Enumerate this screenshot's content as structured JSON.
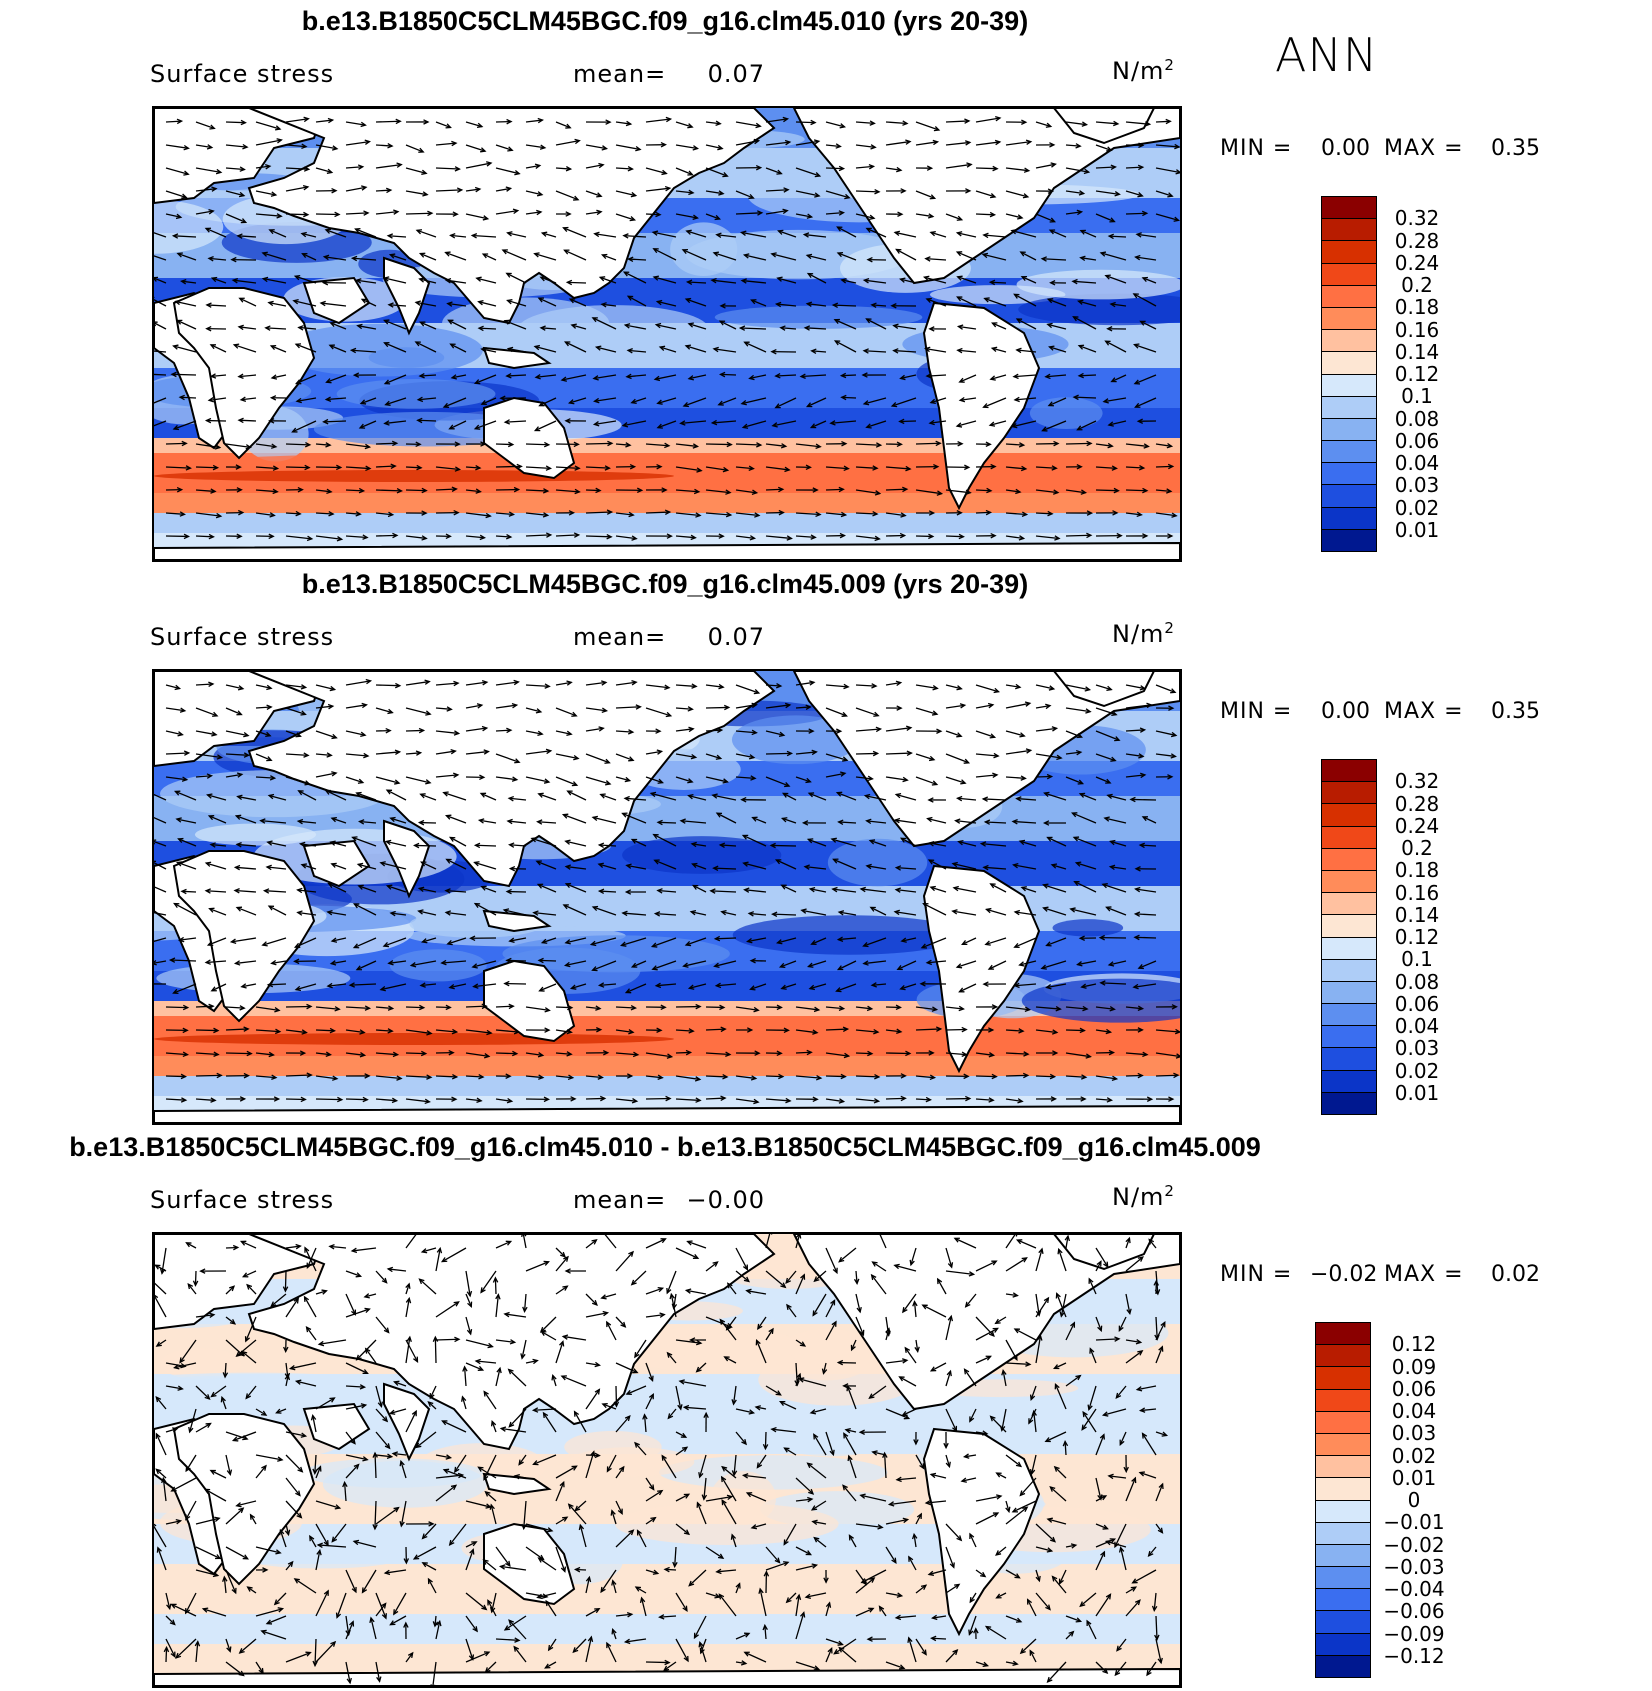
{
  "season": "ANN",
  "panels": [
    {
      "title": "b.e13.B1850C5CLM45BGC.f09_g16.clm45.010 (yrs 20-39)",
      "variable": "Surface stress",
      "mean_label": "mean=",
      "mean_value": "0.07",
      "units": "N/m",
      "units_sup": "2",
      "min_label": "MIN =",
      "min_value": "0.00",
      "max_label": "MAX =",
      "max_value": "0.35",
      "colorbar_labels": [
        "0.32",
        "0.28",
        "0.24",
        "0.2",
        "0.18",
        "0.16",
        "0.14",
        "0.12",
        "0.1",
        "0.08",
        "0.06",
        "0.04",
        "0.03",
        "0.02",
        "0.01"
      ]
    },
    {
      "title": "b.e13.B1850C5CLM45BGC.f09_g16.clm45.009 (yrs 20-39)",
      "variable": "Surface stress",
      "mean_label": "mean=",
      "mean_value": "0.07",
      "units": "N/m",
      "units_sup": "2",
      "min_label": "MIN =",
      "min_value": "0.00",
      "max_label": "MAX =",
      "max_value": "0.35",
      "colorbar_labels": [
        "0.32",
        "0.28",
        "0.24",
        "0.2",
        "0.18",
        "0.16",
        "0.14",
        "0.12",
        "0.1",
        "0.08",
        "0.06",
        "0.04",
        "0.03",
        "0.02",
        "0.01"
      ]
    },
    {
      "title": "b.e13.B1850C5CLM45BGC.f09_g16.clm45.010 - b.e13.B1850C5CLM45BGC.f09_g16.clm45.009",
      "variable": "Surface stress",
      "mean_label": "mean=",
      "mean_value": "−0.00",
      "units": "N/m",
      "units_sup": "2",
      "min_label": "MIN =",
      "min_value": "−0.02",
      "max_label": "MAX =",
      "max_value": "0.02",
      "colorbar_labels": [
        "0.12",
        "0.09",
        "0.06",
        "0.04",
        "0.03",
        "0.02",
        "0.01",
        "0",
        "−0.01",
        "−0.02",
        "−0.03",
        "−0.04",
        "−0.06",
        "−0.09",
        "−0.12"
      ]
    }
  ],
  "colorbar_colors": [
    "#8b0000",
    "#b81c00",
    "#d73000",
    "#f04818",
    "#ff7043",
    "#ff8c5a",
    "#ffc1a0",
    "#fde6d3",
    "#d6e8fb",
    "#aecdf7",
    "#88b2f2",
    "#5d8ff0",
    "#3a6ef0",
    "#1e4fe0",
    "#0b35c8",
    "#001890"
  ]
}
